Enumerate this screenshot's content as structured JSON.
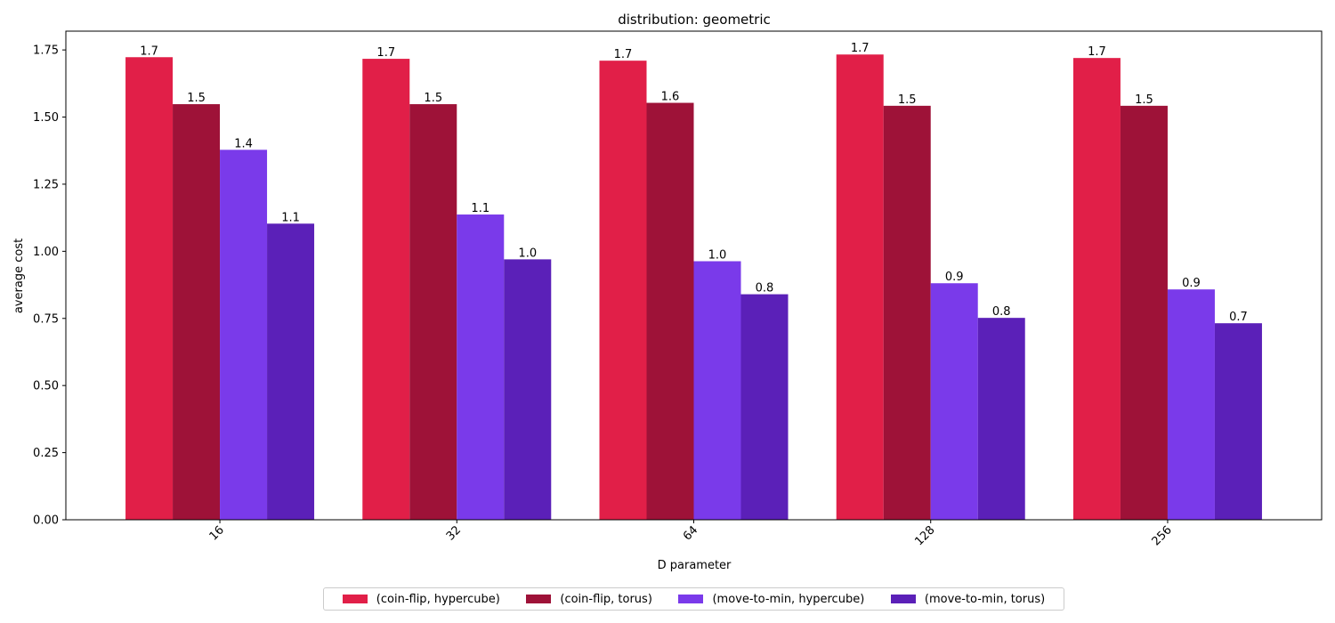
{
  "chart_data": {
    "type": "bar",
    "title": "distribution: geometric",
    "xlabel": "D parameter",
    "ylabel": "average cost",
    "categories": [
      "16",
      "32",
      "64",
      "128",
      "256"
    ],
    "ylim": [
      0,
      1.82
    ],
    "yticks": [
      "0.00",
      "0.25",
      "0.50",
      "0.75",
      "1.00",
      "1.25",
      "1.50",
      "1.75"
    ],
    "grid": false,
    "legend_position": "bottom-center",
    "series": [
      {
        "name": "(coin-flip, hypercube)",
        "color": "#e11f48",
        "values": [
          1.723,
          1.717,
          1.71,
          1.733,
          1.72
        ],
        "labels": [
          "1.7",
          "1.7",
          "1.7",
          "1.7",
          "1.7"
        ]
      },
      {
        "name": "(coin-flip, torus)",
        "color": "#9e1238",
        "values": [
          1.548,
          1.548,
          1.553,
          1.542,
          1.542
        ],
        "labels": [
          "1.5",
          "1.5",
          "1.6",
          "1.5",
          "1.5"
        ]
      },
      {
        "name": "(move-to-min, hypercube)",
        "color": "#7a3aea",
        "values": [
          1.378,
          1.137,
          0.963,
          0.881,
          0.858
        ],
        "labels": [
          "1.4",
          "1.1",
          "1.0",
          "0.9",
          "0.9"
        ]
      },
      {
        "name": "(move-to-min, torus)",
        "color": "#5b20b8",
        "values": [
          1.103,
          0.97,
          0.84,
          0.752,
          0.732
        ],
        "labels": [
          "1.1",
          "1.0",
          "0.8",
          "0.8",
          "0.7"
        ]
      }
    ]
  }
}
